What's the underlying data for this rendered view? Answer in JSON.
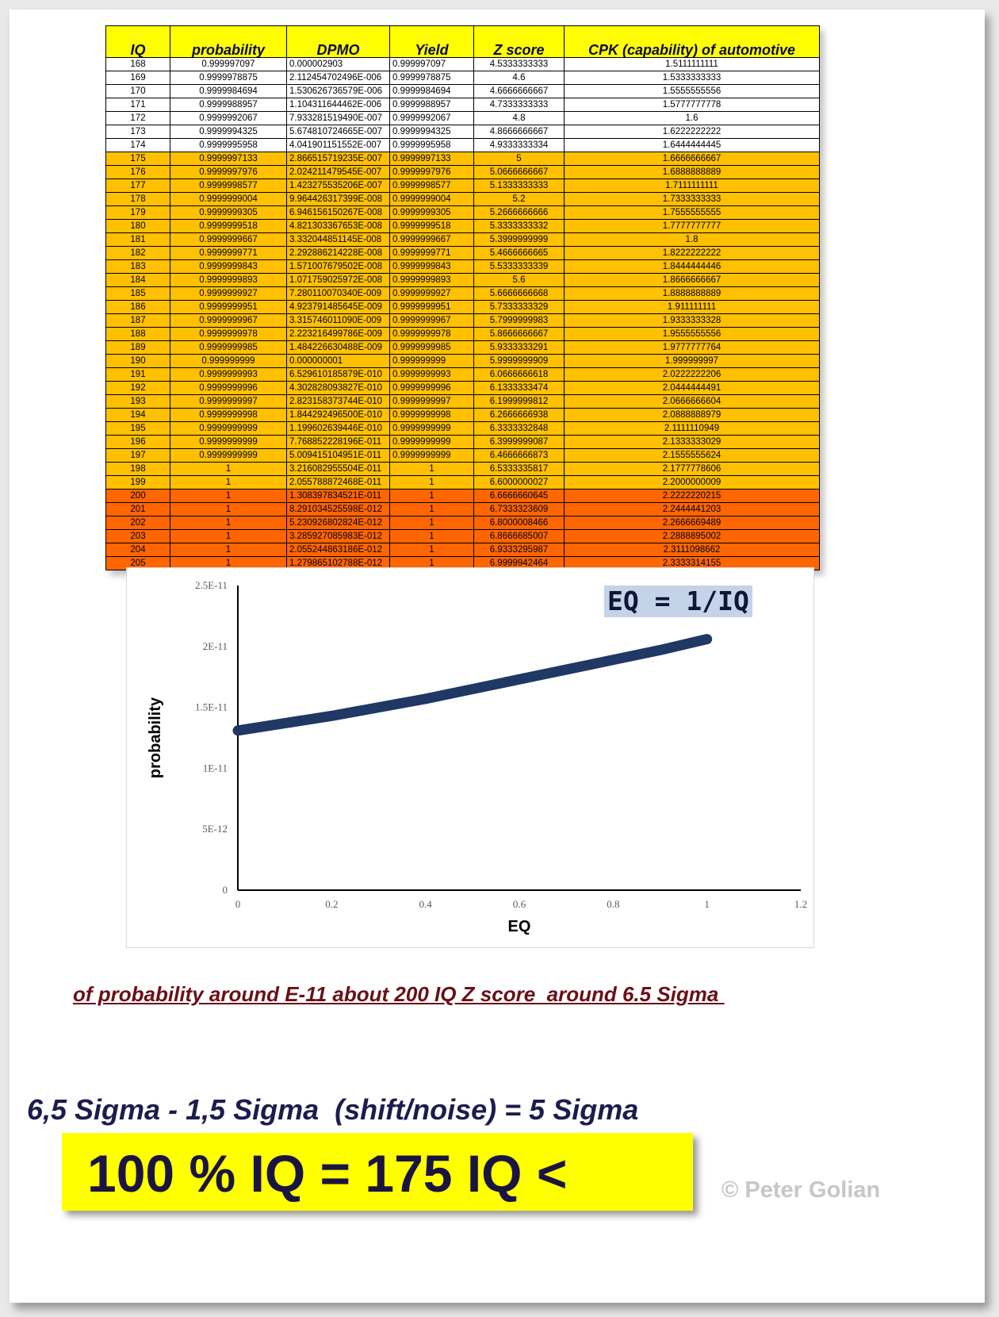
{
  "table": {
    "headers": [
      "IQ",
      "probability",
      "DPMO",
      "Yield",
      "Z score",
      "CPK (capability) of automotive"
    ],
    "rows": [
      {
        "band": "white",
        "cells": [
          "168",
          "0.999997097",
          "0.000002903",
          "0.999997097",
          "4.5333333333",
          "1.5111111111"
        ]
      },
      {
        "band": "white",
        "cells": [
          "169",
          "0.9999978875",
          "2.112454702496E-006",
          "0.9999978875",
          "4.6",
          "1.5333333333"
        ]
      },
      {
        "band": "white",
        "cells": [
          "170",
          "0.9999984694",
          "1.530626736579E-006",
          "0.9999984694",
          "4.6666666667",
          "1.5555555556"
        ]
      },
      {
        "band": "white",
        "cells": [
          "171",
          "0.9999988957",
          "1.104311644462E-006",
          "0.9999988957",
          "4.7333333333",
          "1.5777777778"
        ]
      },
      {
        "band": "white",
        "cells": [
          "172",
          "0.9999992067",
          "7.933281519490E-007",
          "0.9999992067",
          "4.8",
          "1.6"
        ]
      },
      {
        "band": "white",
        "cells": [
          "173",
          "0.9999994325",
          "5.674810724665E-007",
          "0.9999994325",
          "4.8666666667",
          "1.6222222222"
        ]
      },
      {
        "band": "white",
        "cells": [
          "174",
          "0.9999995958",
          "4.041901151552E-007",
          "0.9999995958",
          "4.9333333334",
          "1.6444444445"
        ]
      },
      {
        "band": "gold",
        "cells": [
          "175",
          "0.9999997133",
          "2.866515719235E-007",
          "0.9999997133",
          "5",
          "1.6666666667"
        ]
      },
      {
        "band": "gold",
        "cells": [
          "176",
          "0.9999997976",
          "2.024211479545E-007",
          "0.9999997976",
          "5.0666666667",
          "1.6888888889"
        ]
      },
      {
        "band": "gold",
        "cells": [
          "177",
          "0.9999998577",
          "1.423275535206E-007",
          "0.9999998577",
          "5.1333333333",
          "1.7111111111"
        ]
      },
      {
        "band": "gold",
        "cells": [
          "178",
          "0.9999999004",
          "9.964426317399E-008",
          "0.9999999004",
          "5.2",
          "1.7333333333"
        ]
      },
      {
        "band": "gold",
        "cells": [
          "179",
          "0.9999999305",
          "6.946156150267E-008",
          "0.9999999305",
          "5.2666666666",
          "1.7555555555"
        ]
      },
      {
        "band": "gold",
        "cells": [
          "180",
          "0.9999999518",
          "4.821303367653E-008",
          "0.9999999518",
          "5.3333333332",
          "1.7777777777"
        ]
      },
      {
        "band": "gold",
        "cells": [
          "181",
          "0.9999999667",
          "3.332044851145E-008",
          "0.9999999667",
          "5.3999999999",
          "1.8"
        ]
      },
      {
        "band": "gold",
        "cells": [
          "182",
          "0.9999999771",
          "2.292886214228E-008",
          "0.9999999771",
          "5.4666666665",
          "1.8222222222"
        ]
      },
      {
        "band": "gold",
        "cells": [
          "183",
          "0.9999999843",
          "1.571007679502E-008",
          "0.9999999843",
          "5.5333333339",
          "1.8444444446"
        ]
      },
      {
        "band": "gold",
        "cells": [
          "184",
          "0.9999999893",
          "1.071759025972E-008",
          "0.9999999893",
          "5.6",
          "1.8666666667"
        ]
      },
      {
        "band": "gold",
        "cells": [
          "185",
          "0.9999999927",
          "7.280110070340E-009",
          "0.9999999927",
          "5.6666666668",
          "1.8888888889"
        ]
      },
      {
        "band": "gold",
        "cells": [
          "186",
          "0.9999999951",
          "4.923791485645E-009",
          "0.9999999951",
          "5.7333333329",
          "1.911111111"
        ]
      },
      {
        "band": "gold",
        "cells": [
          "187",
          "0.9999999967",
          "3.315746011090E-009",
          "0.9999999967",
          "5.7999999983",
          "1.9333333328"
        ]
      },
      {
        "band": "gold",
        "cells": [
          "188",
          "0.9999999978",
          "2.223216499786E-009",
          "0.9999999978",
          "5.8666666667",
          "1.9555555556"
        ]
      },
      {
        "band": "gold",
        "cells": [
          "189",
          "0.9999999985",
          "1.484226630488E-009",
          "0.9999999985",
          "5.9333333291",
          "1.9777777764"
        ]
      },
      {
        "band": "gold",
        "cells": [
          "190",
          "0.999999999",
          "0.000000001",
          "0.999999999",
          "5.9999999909",
          "1.999999997"
        ]
      },
      {
        "band": "gold",
        "cells": [
          "191",
          "0.9999999993",
          "6.529610185879E-010",
          "0.9999999993",
          "6.0666666618",
          "2.0222222206"
        ]
      },
      {
        "band": "gold",
        "cells": [
          "192",
          "0.9999999996",
          "4.302828093827E-010",
          "0.9999999996",
          "6.1333333474",
          "2.0444444491"
        ]
      },
      {
        "band": "gold",
        "cells": [
          "193",
          "0.9999999997",
          "2.823158373744E-010",
          "0.9999999997",
          "6.1999999812",
          "2.0666666604"
        ]
      },
      {
        "band": "gold",
        "cells": [
          "194",
          "0.9999999998",
          "1.844292496500E-010",
          "0.9999999998",
          "6.2666666938",
          "2.0888888979"
        ]
      },
      {
        "band": "gold",
        "cells": [
          "195",
          "0.9999999999",
          "1.199602639446E-010",
          "0.9999999999",
          "6.3333332848",
          "2.1111110949"
        ]
      },
      {
        "band": "gold",
        "cells": [
          "196",
          "0.9999999999",
          "7.768852228196E-011",
          "0.9999999999",
          "6.3999999087",
          "2.1333333029"
        ]
      },
      {
        "band": "gold",
        "cells": [
          "197",
          "0.9999999999",
          "5.009415104951E-011",
          "0.9999999999",
          "6.4666666873",
          "2.1555555624"
        ]
      },
      {
        "band": "gold",
        "cells": [
          "198",
          "1",
          "3.216082955504E-011",
          "1",
          "6.5333335817",
          "2.1777778606"
        ]
      },
      {
        "band": "gold",
        "cells": [
          "199",
          "1",
          "2.055788872468E-011",
          "1",
          "6.6000000027",
          "2.2000000009"
        ]
      },
      {
        "band": "orange",
        "cells": [
          "200",
          "1",
          "1.308397834521E-011",
          "1",
          "6.6666660645",
          "2.2222220215"
        ]
      },
      {
        "band": "orange",
        "cells": [
          "201",
          "1",
          "8.291034525598E-012",
          "1",
          "6.7333323609",
          "2.2444441203"
        ]
      },
      {
        "band": "orange",
        "cells": [
          "202",
          "1",
          "5.230926802824E-012",
          "1",
          "6.8000008466",
          "2.2666669489"
        ]
      },
      {
        "band": "orange",
        "cells": [
          "203",
          "1",
          "3.285927085983E-012",
          "1",
          "6.8666685007",
          "2.2888895002"
        ]
      },
      {
        "band": "orange",
        "cells": [
          "204",
          "1",
          "2.055244863186E-012",
          "1",
          "6.9333295987",
          "2.3111098662"
        ]
      },
      {
        "band": "orange",
        "cells": [
          "205",
          "1",
          "1.279865102788E-012",
          "1",
          "6.9999942464",
          "2.3333314155"
        ]
      }
    ],
    "colors": {
      "header": "#ffff00",
      "white": "#ffffff",
      "gold": "#ffc000",
      "orange": "#ff6600"
    }
  },
  "chart_data": {
    "type": "line",
    "title": "",
    "annotation": "EQ = 1/IQ",
    "xlabel": "EQ",
    "ylabel": "probability",
    "xlim": [
      0,
      1.2
    ],
    "ylim": [
      0,
      2.5e-11
    ],
    "x_ticks": [
      "0",
      "0.2",
      "0.4",
      "0.6",
      "0.8",
      "1",
      "1.2"
    ],
    "y_ticks": [
      "0",
      "5E-12",
      "1E-11",
      "1.5E-11",
      "2E-11",
      "2.5E-11"
    ],
    "grid": false,
    "series": [
      {
        "color": "#1f3864",
        "x": [
          0,
          0.1,
          0.2,
          0.3,
          0.4,
          0.5,
          0.6,
          0.7,
          0.8,
          0.9,
          1.0
        ],
        "y": [
          1.31e-11,
          1.37e-11,
          1.43e-11,
          1.5e-11,
          1.57e-11,
          1.65e-11,
          1.73e-11,
          1.81e-11,
          1.89e-11,
          1.97e-11,
          2.06e-11
        ]
      }
    ]
  },
  "caption": "of probability around E-11 about 200 IQ Z score  around 6.5 Sigma ",
  "sigma_line": "6,5 Sigma - 1,5 Sigma  (shift/noise) = 5 Sigma",
  "big_statement": "100 % IQ = 175 IQ <",
  "copyright": "© Peter Golian"
}
